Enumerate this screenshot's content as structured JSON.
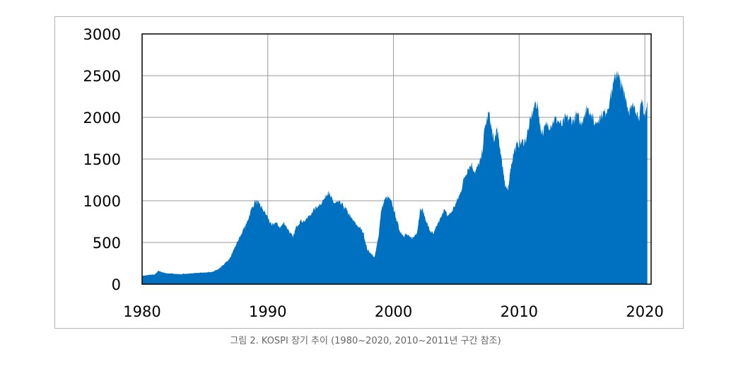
{
  "caption": "그림 2. KOSPI 장기 추이 (1980~2020, 2010~2011년 구간 참조)",
  "chart_data": {
    "type": "area",
    "title": "",
    "xlabel": "",
    "ylabel": "",
    "xlim": [
      1980,
      2020.5
    ],
    "ylim": [
      0,
      3000
    ],
    "grid": true,
    "legend": "none",
    "x_ticks": [
      "1980",
      "1990",
      "2000",
      "2010",
      "2020"
    ],
    "y_ticks": [
      "0",
      "500",
      "1000",
      "1500",
      "2000",
      "2500",
      "3000"
    ],
    "fill_color": "#0070c0",
    "grid_color": "#9a9a9a",
    "x": [
      1980.0,
      1980.5,
      1981.0,
      1981.3,
      1981.6,
      1982.0,
      1982.5,
      1983.0,
      1983.5,
      1984.0,
      1984.5,
      1985.0,
      1985.5,
      1986.0,
      1986.5,
      1987.0,
      1987.5,
      1988.0,
      1988.3,
      1988.6,
      1989.0,
      1989.3,
      1989.6,
      1990.0,
      1990.3,
      1990.6,
      1991.0,
      1991.3,
      1991.6,
      1992.0,
      1992.3,
      1992.6,
      1993.0,
      1993.5,
      1994.0,
      1994.5,
      1994.8,
      1995.0,
      1995.3,
      1995.6,
      1996.0,
      1996.3,
      1996.6,
      1997.0,
      1997.3,
      1997.6,
      1997.9,
      1998.2,
      1998.5,
      1998.8,
      1999.0,
      1999.3,
      1999.6,
      1999.9,
      2000.2,
      2000.5,
      2000.8,
      2001.0,
      2001.3,
      2001.6,
      2001.9,
      2002.1,
      2002.3,
      2002.6,
      2002.9,
      2003.2,
      2003.5,
      2003.8,
      2004.0,
      2004.3,
      2004.6,
      2005.0,
      2005.3,
      2005.6,
      2005.9,
      2006.2,
      2006.5,
      2006.8,
      2007.0,
      2007.3,
      2007.6,
      2007.8,
      2008.0,
      2008.2,
      2008.4,
      2008.6,
      2008.8,
      2008.9,
      2009.1,
      2009.3,
      2009.6,
      2009.9,
      2010.2,
      2010.5,
      2010.8,
      2011.1,
      2011.3,
      2011.5,
      2011.7,
      2011.9,
      2012.2,
      2012.5,
      2012.8,
      2013.1,
      2013.4,
      2013.7,
      2014.0,
      2014.3,
      2014.6,
      2014.9,
      2015.2,
      2015.4,
      2015.7,
      2016.0,
      2016.3,
      2016.6,
      2016.9,
      2017.2,
      2017.5,
      2017.8,
      2018.0,
      2018.2,
      2018.4,
      2018.7,
      2018.9,
      2019.2,
      2019.5,
      2019.8,
      2020.0,
      2020.2
    ],
    "values": [
      100,
      110,
      115,
      160,
      140,
      130,
      125,
      120,
      125,
      130,
      135,
      140,
      145,
      175,
      230,
      320,
      480,
      640,
      720,
      860,
      1000,
      960,
      900,
      800,
      700,
      740,
      680,
      740,
      660,
      560,
      700,
      760,
      760,
      860,
      940,
      1020,
      1120,
      1040,
      970,
      980,
      940,
      880,
      800,
      720,
      680,
      620,
      420,
      370,
      320,
      560,
      860,
      1020,
      1040,
      960,
      800,
      640,
      580,
      600,
      560,
      560,
      640,
      880,
      900,
      760,
      640,
      600,
      720,
      800,
      900,
      820,
      860,
      980,
      1080,
      1260,
      1380,
      1440,
      1340,
      1440,
      1520,
      1900,
      2060,
      1860,
      1700,
      1860,
      1720,
      1500,
      1300,
      1160,
      1120,
      1380,
      1600,
      1680,
      1700,
      1720,
      1900,
      2080,
      2180,
      2120,
      1860,
      1820,
      1920,
      1900,
      1980,
      1960,
      1900,
      2000,
      1980,
      1960,
      2040,
      1920,
      2040,
      2120,
      2060,
      1920,
      1980,
      2040,
      2060,
      2200,
      2400,
      2560,
      2440,
      2350,
      2300,
      2080,
      2100,
      2150,
      2000,
      2180,
      2000,
      2160
    ]
  }
}
